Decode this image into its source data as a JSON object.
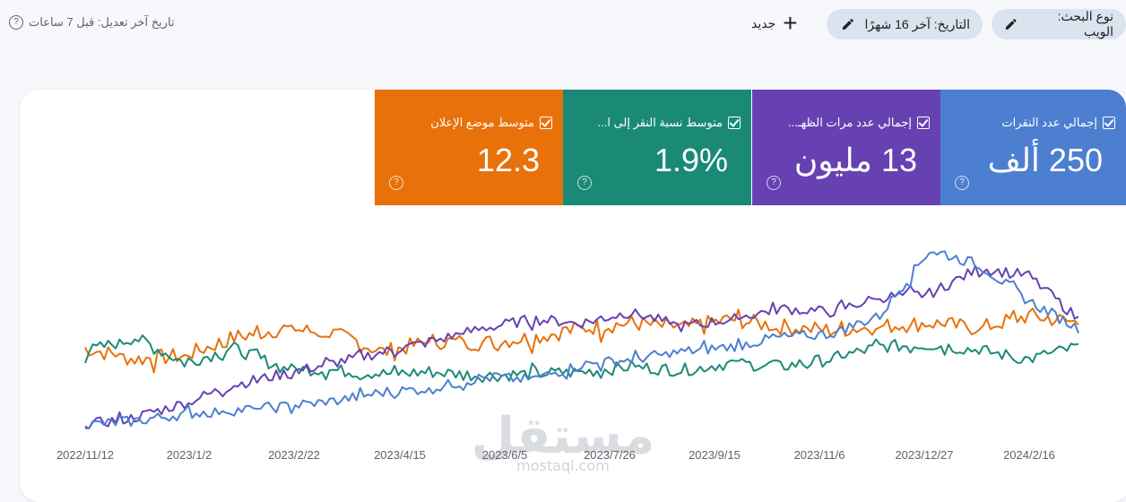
{
  "toolbar": {
    "last_updated": "تاريخ آخر تعديل: قبل 7 ساعات",
    "new_label": "جديد",
    "date_filter": "التاريخ: آخر 16 شهرًا",
    "search_type_filter": "نوع البحث: الويب"
  },
  "metrics": [
    {
      "key": "clicks",
      "label": "إجمالي عدد النقرات",
      "value": "250 ألف",
      "checked": true,
      "color": "#4d7fd0"
    },
    {
      "key": "impressions",
      "label": "إجمالي عدد مرات الظهـ...",
      "value": "13 مليون",
      "checked": true,
      "color": "#6741b2"
    },
    {
      "key": "ctr",
      "label": "متوسط نسبة النقر إلى ا...",
      "value": "1.9%",
      "checked": true,
      "color": "#1a8a76"
    },
    {
      "key": "position",
      "label": "متوسط موضع الإعلان",
      "value": "12.3",
      "checked": true,
      "color": "#e8710a"
    }
  ],
  "chart_data": {
    "type": "line",
    "x_tick_labels": [
      "2022/11/12",
      "2023/1/2",
      "2023/2/22",
      "2023/4/15",
      "2023/6/5",
      "2023/7/26",
      "2023/9/15",
      "2023/11/6",
      "2023/12/27",
      "2024/2/16"
    ],
    "x_range": [
      "2022/11/12",
      "2024/3/1"
    ],
    "y_axis_shown": false,
    "grid": false,
    "series": [
      {
        "name": "إجمالي عدد النقرات",
        "color": "#4d7fd0",
        "values": [
          0.02,
          0.04,
          0.08,
          0.1,
          0.12,
          0.15,
          0.2,
          0.22,
          0.28,
          0.27,
          0.35,
          0.38,
          0.42,
          0.45,
          0.5,
          0.52,
          0.62,
          0.98,
          0.9,
          0.7,
          0.55
        ]
      },
      {
        "name": "إجمالي عدد مرات الظهـ...",
        "color": "#6741b2",
        "values": [
          0.02,
          0.06,
          0.14,
          0.24,
          0.3,
          0.36,
          0.42,
          0.48,
          0.55,
          0.6,
          0.58,
          0.64,
          0.56,
          0.6,
          0.66,
          0.64,
          0.72,
          0.74,
          0.88,
          0.84,
          0.6
        ]
      },
      {
        "name": "متوسط نسبة النقر إلى ا...",
        "color": "#1a8a76",
        "values": [
          0.42,
          0.5,
          0.36,
          0.44,
          0.33,
          0.32,
          0.3,
          0.31,
          0.29,
          0.3,
          0.31,
          0.34,
          0.32,
          0.36,
          0.34,
          0.38,
          0.45,
          0.46,
          0.43,
          0.38,
          0.45
        ]
      },
      {
        "name": "متوسط موضع الإعلان",
        "color": "#e8710a",
        "values": [
          0.44,
          0.38,
          0.4,
          0.5,
          0.55,
          0.52,
          0.42,
          0.48,
          0.47,
          0.5,
          0.55,
          0.58,
          0.55,
          0.6,
          0.56,
          0.54,
          0.56,
          0.58,
          0.55,
          0.62,
          0.58
        ]
      }
    ]
  },
  "watermark": {
    "arabic": "مستقل",
    "latin": "mostaql.com"
  }
}
